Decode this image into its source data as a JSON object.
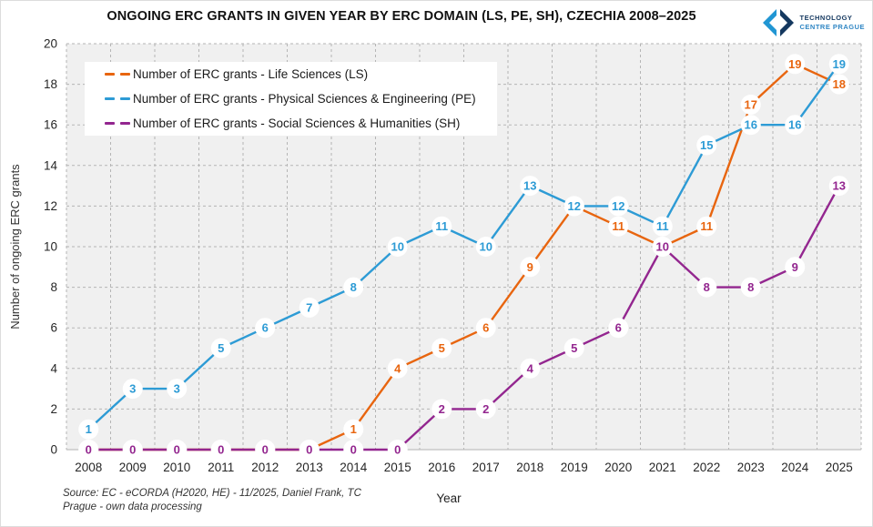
{
  "header": {
    "logo": {
      "line1": "TECHNOLOGY",
      "line2": "CENTRE PRAGUE"
    }
  },
  "chart_data": {
    "type": "line",
    "title": "ONGOING ERC GRANTS IN GIVEN YEAR BY ERC DOMAIN (LS, PE, SH), CZECHIA 2008–2025",
    "xlabel": "Year",
    "ylabel": "Number of ongoing ERC grants",
    "ylim": [
      0,
      20
    ],
    "ytick_step": 2,
    "grid": true,
    "legend_position": "top-left",
    "categories": [
      "2008",
      "2009",
      "2010",
      "2011",
      "2012",
      "2013",
      "2014",
      "2015",
      "2016",
      "2017",
      "2018",
      "2019",
      "2020",
      "2021",
      "2022",
      "2023",
      "2024",
      "2025"
    ],
    "series": [
      {
        "key": "LS",
        "name": "Number of ERC grants - Life Sciences (LS)",
        "color": "#E8650F",
        "values": [
          0,
          0,
          0,
          0,
          0,
          0,
          1,
          4,
          5,
          6,
          9,
          12,
          11,
          10,
          11,
          17,
          19,
          18
        ]
      },
      {
        "key": "PE",
        "name": "Number of ERC grants - Physical Sciences & Engineering (PE)",
        "color": "#2D9BD5",
        "values": [
          1,
          3,
          3,
          5,
          6,
          7,
          8,
          10,
          11,
          10,
          13,
          12,
          12,
          11,
          15,
          16,
          16,
          19
        ]
      },
      {
        "key": "SH",
        "name": "Number of ERC grants  - Social Sciences & Humanities  (SH)",
        "color": "#93268F",
        "values": [
          0,
          0,
          0,
          0,
          0,
          0,
          0,
          0,
          2,
          2,
          4,
          5,
          6,
          10,
          8,
          8,
          9,
          13
        ]
      }
    ]
  },
  "footer": {
    "source_line1": "Source: EC - eCORDA (H2020, HE) - 11/2025,  Daniel Frank, TC",
    "source_line2": "Prague - own data processing"
  },
  "colors": {
    "plot_bg": "#F0F0F0",
    "grid": "#B5B5B5",
    "axis": "#BFBFBF",
    "marker_fill": "#FFFFFF",
    "logo_navy": "#14385F",
    "logo_blue": "#2196D3"
  }
}
